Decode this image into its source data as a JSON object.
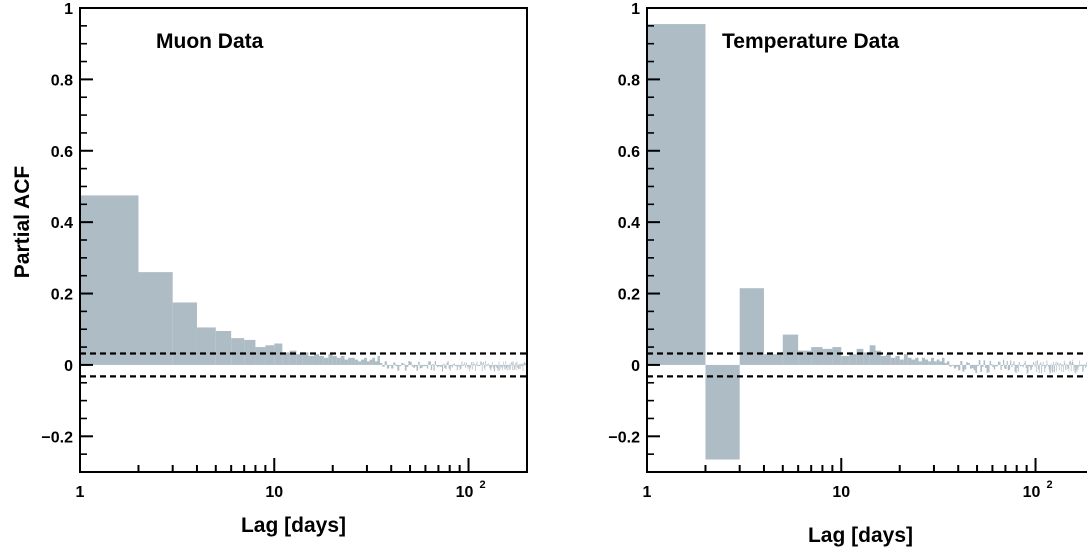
{
  "chart_data": [
    {
      "type": "bar",
      "title": "Muon Data",
      "xlabel": "Lag [days]",
      "ylabel": "Partial ACF",
      "xscale": "log",
      "xlim": [
        1,
        200
      ],
      "ylim": [
        -0.3,
        1.0
      ],
      "x_ticks": [
        "1",
        "10",
        "10",
        "2"
      ],
      "y_ticks": [
        "1",
        "0.8",
        "0.6",
        "0.4",
        "0.2",
        "0",
        "−0.2"
      ],
      "y_tick_values": [
        1,
        0.8,
        0.6,
        0.4,
        0.2,
        0,
        -0.2
      ],
      "confidence_band": [
        -0.032,
        0.032
      ],
      "bar_color": "#aebcc6",
      "lags": [
        1,
        2,
        3,
        4,
        5,
        6,
        7,
        8,
        9,
        10,
        11,
        12,
        13,
        14,
        15,
        16,
        17,
        18,
        19,
        20,
        21,
        22,
        23,
        24,
        25,
        26,
        27,
        28,
        29,
        30,
        31,
        32,
        33,
        34,
        35,
        36,
        37,
        38,
        39,
        40
      ],
      "values": [
        0.475,
        0.26,
        0.175,
        0.105,
        0.095,
        0.075,
        0.07,
        0.05,
        0.055,
        0.06,
        0.035,
        0.04,
        0.03,
        0.035,
        0.025,
        0.03,
        0.025,
        0.02,
        0.03,
        0.025,
        0.02,
        0.025,
        0.015,
        0.02,
        0.02,
        0.015,
        0.01,
        0.015,
        0.02,
        0.01,
        0.015,
        0.02,
        0.01,
        0.025,
        0.005,
        -0.005,
        0.01,
        -0.01,
        0.0,
        -0.01
      ],
      "tail_amplitude": 0.015
    },
    {
      "type": "bar",
      "title": "Temperature Data",
      "xlabel": "Lag [days]",
      "ylabel": "",
      "xscale": "log",
      "xlim": [
        1,
        200
      ],
      "ylim": [
        -0.3,
        1.0
      ],
      "x_ticks": [
        "1",
        "10",
        "10",
        "2"
      ],
      "y_ticks": [
        "1",
        "0.8",
        "0.6",
        "0.4",
        "0.2",
        "0",
        "−0.2"
      ],
      "y_tick_values": [
        1,
        0.8,
        0.6,
        0.4,
        0.2,
        0,
        -0.2
      ],
      "confidence_band": [
        -0.032,
        0.032
      ],
      "bar_color": "#aebcc6",
      "lags": [
        1,
        2,
        3,
        4,
        5,
        6,
        7,
        8,
        9,
        10,
        11,
        12,
        13,
        14,
        15,
        16,
        17,
        18,
        19,
        20,
        21,
        22,
        23,
        24,
        25,
        26,
        27,
        28,
        29,
        30,
        31,
        32,
        33,
        34,
        35,
        36,
        37,
        38,
        39,
        40
      ],
      "values": [
        0.955,
        -0.265,
        0.215,
        0.03,
        0.085,
        0.04,
        0.05,
        0.045,
        0.05,
        0.025,
        0.03,
        0.045,
        0.035,
        0.055,
        0.04,
        0.025,
        0.03,
        0.02,
        0.025,
        0.015,
        0.03,
        0.02,
        0.015,
        0.02,
        0.01,
        0.02,
        0.015,
        0.01,
        0.02,
        0.01,
        0.015,
        0.01,
        0.02,
        0.005,
        0.01,
        -0.005,
        0.0,
        -0.01,
        -0.005,
        -0.015
      ],
      "tail_amplitude": 0.02
    }
  ]
}
